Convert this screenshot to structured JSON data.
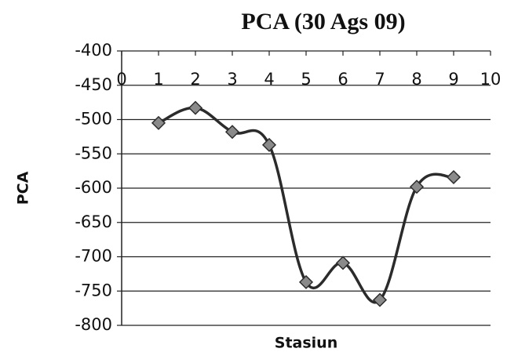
{
  "chart_data": {
    "type": "line",
    "title": "PCA (30 Ags 09)",
    "xlabel": "Stasiun",
    "ylabel": "PCA",
    "x": [
      1,
      2,
      3,
      4,
      5,
      6,
      7,
      8,
      9
    ],
    "series": [
      {
        "name": "PCA",
        "color": "#2b2b2b",
        "marker_color": "#8a8a8a",
        "values": [
          -505,
          -483,
          -518,
          -537,
          -737,
          -709,
          -763,
          -598,
          -584
        ]
      }
    ],
    "xlim": [
      0,
      10
    ],
    "xticks": [
      0,
      1,
      2,
      3,
      4,
      5,
      6,
      7,
      8,
      9,
      10
    ],
    "ylim": [
      -800,
      -400
    ],
    "yticks": [
      -800,
      -750,
      -700,
      -650,
      -600,
      -550,
      -500,
      -450,
      -400
    ],
    "grid": true,
    "smooth": true
  }
}
